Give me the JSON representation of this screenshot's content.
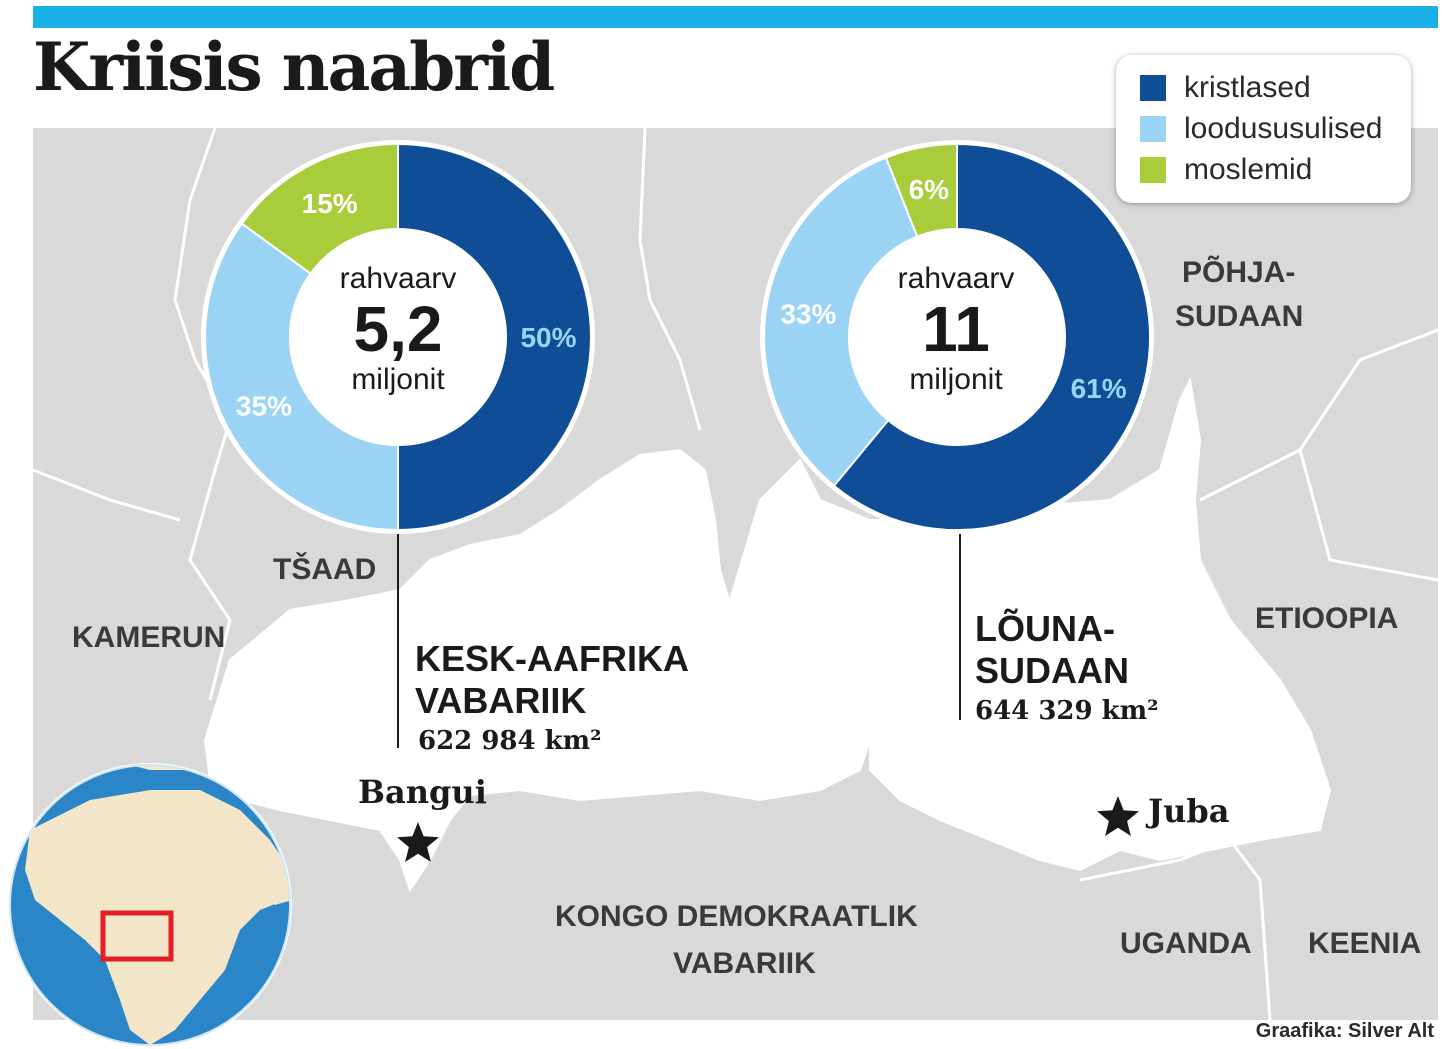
{
  "title": "Kriisis naabrid",
  "colors": {
    "christians": "#0f4e96",
    "animists": "#9ad3f4",
    "muslims": "#a8cc3a",
    "map_gray": "#d9d9d9",
    "map_white": "#ffffff",
    "header_bar": "#1ab0e8",
    "locator_box": "#e41e26"
  },
  "legend": [
    {
      "label": "kristlased",
      "color": "#0f4e96"
    },
    {
      "label": "loodususulised",
      "color": "#9ad3f4"
    },
    {
      "label": "moslemid",
      "color": "#a8cc3a"
    }
  ],
  "chart_data": [
    {
      "type": "pie",
      "country": "KESK-AAFRIKA VABARIIK",
      "center_top": "rahvaarv",
      "center_value": "5,2",
      "center_bottom": "miljonit",
      "slices": [
        {
          "name": "kristlased",
          "value": 50,
          "label": "50%"
        },
        {
          "name": "loodususulised",
          "value": 35,
          "label": "35%"
        },
        {
          "name": "moslemid",
          "value": 15,
          "label": "15%"
        }
      ]
    },
    {
      "type": "pie",
      "country": "LÕUNA-SUDAAN",
      "center_top": "rahvaarv",
      "center_value": "11",
      "center_bottom": "miljonit",
      "slices": [
        {
          "name": "kristlased",
          "value": 61,
          "label": "61%"
        },
        {
          "name": "loodususulised",
          "value": 33,
          "label": "33%"
        },
        {
          "name": "moslemid",
          "value": 6,
          "label": "6%"
        }
      ]
    }
  ],
  "countries": {
    "car_line1": "KESK-AAFRIKA",
    "car_line2": "VABARIIK",
    "car_area": "622 984 km²",
    "ss_line1": "LÕUNA-",
    "ss_line2": "SUDAAN",
    "ss_area": "644 329 km²",
    "chad": "TŠAAD",
    "cameroon": "KAMERUN",
    "north_sudan_1": "PÕHJA-",
    "north_sudan_2": "SUDAAN",
    "ethiopia": "ETIOOPIA",
    "drc_1": "KONGO DEMOKRAATLIK",
    "drc_2": "VABARIIK",
    "uganda": "UGANDA",
    "kenya": "KEENIA"
  },
  "cities": {
    "bangui": "Bangui",
    "juba": "Juba"
  },
  "credit": "Graafika: Silver Alt"
}
